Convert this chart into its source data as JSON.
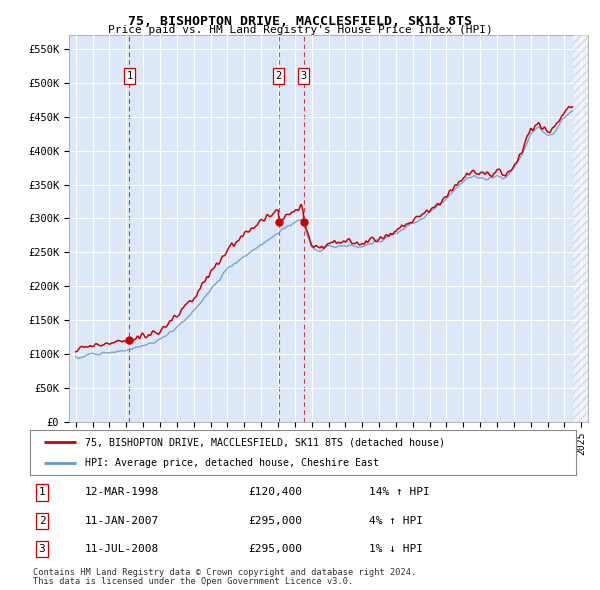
{
  "title": "75, BISHOPTON DRIVE, MACCLESFIELD, SK11 8TS",
  "subtitle": "Price paid vs. HM Land Registry's House Price Index (HPI)",
  "legend_line1": "75, BISHOPTON DRIVE, MACCLESFIELD, SK11 8TS (detached house)",
  "legend_line2": "HPI: Average price, detached house, Cheshire East",
  "sales": [
    {
      "label": "1",
      "date": "12-MAR-1998",
      "price": 120400,
      "hpi_pct": "14% ↑ HPI",
      "year": 1998.19
    },
    {
      "label": "2",
      "date": "11-JAN-2007",
      "price": 295000,
      "hpi_pct": "4% ↑ HPI",
      "year": 2007.04
    },
    {
      "label": "3",
      "date": "11-JUL-2008",
      "price": 295000,
      "hpi_pct": "1% ↓ HPI",
      "year": 2008.53
    }
  ],
  "footnote1": "Contains HM Land Registry data © Crown copyright and database right 2024.",
  "footnote2": "This data is licensed under the Open Government Licence v3.0.",
  "fig_bg": "#ffffff",
  "plot_bg": "#dce8f8",
  "red_color": "#cc0000",
  "blue_color": "#6699cc",
  "grid_color": "#ffffff",
  "yticks": [
    0,
    50000,
    100000,
    150000,
    200000,
    250000,
    300000,
    350000,
    400000,
    450000,
    500000,
    550000
  ],
  "xlim_start": 1994.6,
  "xlim_end": 2025.4
}
